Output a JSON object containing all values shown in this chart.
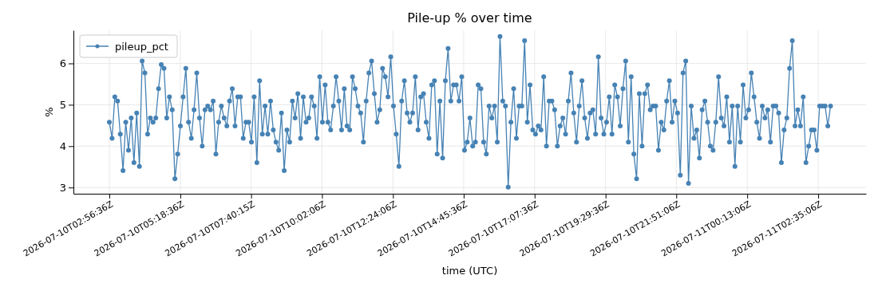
{
  "chart_data": {
    "type": "line",
    "title": "Pile-up % over time",
    "xlabel": "time (UTC)",
    "ylabel": "%",
    "xlim": [
      "2026-07-10T01:44:42",
      "2026-07-11T04:10:48"
    ],
    "ylim": [
      2.85,
      6.8
    ],
    "xticks": [
      {
        "value": "2026-07-10T02:56:36",
        "label": "2026-07-10T02:56:36Z"
      },
      {
        "value": "2026-07-10T05:18:36",
        "label": "2026-07-10T05:18:36Z"
      },
      {
        "value": "2026-07-10T07:40:15",
        "label": "2026-07-10T07:40:15Z"
      },
      {
        "value": "2026-07-10T10:02:06",
        "label": "2026-07-10T10:02:06Z"
      },
      {
        "value": "2026-07-10T12:24:06",
        "label": "2026-07-10T12:24:06Z"
      },
      {
        "value": "2026-07-10T14:45:36",
        "label": "2026-07-10T14:45:36Z"
      },
      {
        "value": "2026-07-10T17:07:36",
        "label": "2026-07-10T17:07:36Z"
      },
      {
        "value": "2026-07-10T19:29:36",
        "label": "2026-07-10T19:29:36Z"
      },
      {
        "value": "2026-07-10T21:51:06",
        "label": "2026-07-10T21:51:06Z"
      },
      {
        "value": "2026-07-11T00:13:06",
        "label": "2026-07-11T00:13:06Z"
      },
      {
        "value": "2026-07-11T02:35:06",
        "label": "2026-07-11T02:35:06Z"
      }
    ],
    "yticks": [
      3,
      4,
      5,
      6
    ],
    "grid": true,
    "legend": "top left",
    "marker": "circle",
    "line_style": "solid",
    "x": [
      "2026-07-10T02:56:36",
      "2026-07-10T03:02:04",
      "2026-07-10T03:07:32",
      "2026-07-10T03:13:00",
      "2026-07-10T03:18:28",
      "2026-07-10T03:23:56",
      "2026-07-10T03:29:24",
      "2026-07-10T03:34:52",
      "2026-07-10T03:40:20",
      "2026-07-10T03:45:48",
      "2026-07-10T03:51:16",
      "2026-07-10T03:56:44",
      "2026-07-10T04:02:12",
      "2026-07-10T04:07:40",
      "2026-07-10T04:13:08",
      "2026-07-10T04:18:36",
      "2026-07-10T04:24:04",
      "2026-07-10T04:29:32",
      "2026-07-10T04:35:00",
      "2026-07-10T04:40:28",
      "2026-07-10T04:45:56",
      "2026-07-10T04:51:24",
      "2026-07-10T04:56:52",
      "2026-07-10T05:02:20",
      "2026-07-10T05:07:48",
      "2026-07-10T05:13:16",
      "2026-07-10T05:18:44",
      "2026-07-10T05:24:12",
      "2026-07-10T05:29:40",
      "2026-07-10T05:35:08",
      "2026-07-10T05:40:36",
      "2026-07-10T05:46:04",
      "2026-07-10T05:51:32",
      "2026-07-10T05:57:00",
      "2026-07-10T06:02:28",
      "2026-07-10T06:07:56",
      "2026-07-10T06:13:24",
      "2026-07-10T06:18:52",
      "2026-07-10T06:24:20",
      "2026-07-10T06:29:48",
      "2026-07-10T06:35:16",
      "2026-07-10T06:40:44",
      "2026-07-10T06:46:12",
      "2026-07-10T06:51:40",
      "2026-07-10T06:57:08",
      "2026-07-10T07:02:36",
      "2026-07-10T07:08:04",
      "2026-07-10T07:13:32",
      "2026-07-10T07:19:00",
      "2026-07-10T07:24:28",
      "2026-07-10T07:29:56",
      "2026-07-10T07:35:24",
      "2026-07-10T07:40:52",
      "2026-07-10T07:46:20",
      "2026-07-10T07:51:48",
      "2026-07-10T07:57:16",
      "2026-07-10T08:02:44",
      "2026-07-10T08:08:12",
      "2026-07-10T08:13:40",
      "2026-07-10T08:19:08",
      "2026-07-10T08:24:36",
      "2026-07-10T08:30:04",
      "2026-07-10T08:35:32",
      "2026-07-10T08:41:00",
      "2026-07-10T08:46:28",
      "2026-07-10T08:51:56",
      "2026-07-10T08:57:24",
      "2026-07-10T09:02:52",
      "2026-07-10T09:08:20",
      "2026-07-10T09:13:48",
      "2026-07-10T09:19:16",
      "2026-07-10T09:24:44",
      "2026-07-10T09:30:12",
      "2026-07-10T09:35:40",
      "2026-07-10T09:41:08",
      "2026-07-10T09:46:36",
      "2026-07-10T09:52:04",
      "2026-07-10T09:57:32",
      "2026-07-10T10:03:00",
      "2026-07-10T10:08:28",
      "2026-07-10T10:13:56",
      "2026-07-10T10:19:24",
      "2026-07-10T10:24:52",
      "2026-07-10T10:30:20",
      "2026-07-10T10:35:48",
      "2026-07-10T10:41:16",
      "2026-07-10T10:46:44",
      "2026-07-10T10:52:12",
      "2026-07-10T10:57:40",
      "2026-07-10T11:03:08",
      "2026-07-10T11:08:36",
      "2026-07-10T11:14:04",
      "2026-07-10T11:19:32",
      "2026-07-10T11:25:00",
      "2026-07-10T11:30:28",
      "2026-07-10T11:35:56",
      "2026-07-10T11:41:24",
      "2026-07-10T11:46:52",
      "2026-07-10T11:52:20",
      "2026-07-10T11:57:48",
      "2026-07-10T12:03:16",
      "2026-07-10T12:08:44",
      "2026-07-10T12:14:12",
      "2026-07-10T12:19:40",
      "2026-07-10T12:25:08",
      "2026-07-10T12:30:36",
      "2026-07-10T12:36:04",
      "2026-07-10T12:41:32",
      "2026-07-10T12:47:00",
      "2026-07-10T12:52:28",
      "2026-07-10T12:57:56",
      "2026-07-10T13:03:24",
      "2026-07-10T13:08:52",
      "2026-07-10T13:14:20",
      "2026-07-10T13:19:48",
      "2026-07-10T13:25:16",
      "2026-07-10T13:30:44",
      "2026-07-10T13:36:12",
      "2026-07-10T13:41:40",
      "2026-07-10T13:47:08",
      "2026-07-10T13:52:36",
      "2026-07-10T13:58:04",
      "2026-07-10T14:03:32",
      "2026-07-10T14:09:00",
      "2026-07-10T14:14:28",
      "2026-07-10T14:19:56",
      "2026-07-10T14:25:24",
      "2026-07-10T14:30:52",
      "2026-07-10T14:36:20",
      "2026-07-10T14:41:48",
      "2026-07-10T14:47:16",
      "2026-07-10T14:52:44",
      "2026-07-10T14:58:12",
      "2026-07-10T15:03:40",
      "2026-07-10T15:09:08",
      "2026-07-10T15:14:36",
      "2026-07-10T15:20:04",
      "2026-07-10T15:25:32",
      "2026-07-10T15:31:00",
      "2026-07-10T15:36:28",
      "2026-07-10T15:41:56",
      "2026-07-10T15:47:24",
      "2026-07-10T15:52:52",
      "2026-07-10T15:58:20",
      "2026-07-10T16:03:48",
      "2026-07-10T16:09:16",
      "2026-07-10T16:14:44",
      "2026-07-10T16:20:12",
      "2026-07-10T16:25:40",
      "2026-07-10T16:31:08",
      "2026-07-10T16:36:36",
      "2026-07-10T16:42:04",
      "2026-07-10T16:47:32",
      "2026-07-10T16:53:00",
      "2026-07-10T16:58:28",
      "2026-07-10T17:03:56",
      "2026-07-10T17:09:24",
      "2026-07-10T17:14:52",
      "2026-07-10T17:20:20",
      "2026-07-10T17:25:48",
      "2026-07-10T17:31:16",
      "2026-07-10T17:36:44",
      "2026-07-10T17:42:12",
      "2026-07-10T17:47:40",
      "2026-07-10T17:53:08",
      "2026-07-10T17:58:36",
      "2026-07-10T18:04:04",
      "2026-07-10T18:09:32",
      "2026-07-10T18:15:00",
      "2026-07-10T18:20:28",
      "2026-07-10T18:25:56",
      "2026-07-10T18:31:24",
      "2026-07-10T18:36:52",
      "2026-07-10T18:42:20",
      "2026-07-10T18:47:48",
      "2026-07-10T18:53:16",
      "2026-07-10T18:58:44",
      "2026-07-10T19:04:12",
      "2026-07-10T19:09:40",
      "2026-07-10T19:15:08",
      "2026-07-10T19:20:36",
      "2026-07-10T19:26:04",
      "2026-07-10T19:31:32",
      "2026-07-10T19:37:00",
      "2026-07-10T19:42:28",
      "2026-07-10T19:47:56",
      "2026-07-10T19:53:24",
      "2026-07-10T19:58:52",
      "2026-07-10T20:04:20",
      "2026-07-10T20:09:48",
      "2026-07-10T20:15:16",
      "2026-07-10T20:20:44",
      "2026-07-10T20:26:12",
      "2026-07-10T20:31:40",
      "2026-07-10T20:37:08",
      "2026-07-10T20:42:36",
      "2026-07-10T20:48:04",
      "2026-07-10T20:53:32",
      "2026-07-10T20:59:00",
      "2026-07-10T21:04:28",
      "2026-07-10T21:09:56",
      "2026-07-10T21:15:24",
      "2026-07-10T21:20:52",
      "2026-07-10T21:26:20",
      "2026-07-10T21:31:48",
      "2026-07-10T21:37:16",
      "2026-07-10T21:42:44",
      "2026-07-10T21:48:12",
      "2026-07-10T21:53:40",
      "2026-07-10T21:59:08",
      "2026-07-10T22:04:36",
      "2026-07-10T22:10:04",
      "2026-07-10T22:15:32",
      "2026-07-10T22:21:00",
      "2026-07-10T22:26:28",
      "2026-07-10T22:31:56",
      "2026-07-10T22:37:24",
      "2026-07-10T22:42:52",
      "2026-07-10T22:48:20",
      "2026-07-10T22:53:48",
      "2026-07-10T22:59:16",
      "2026-07-10T23:04:44",
      "2026-07-10T23:10:12",
      "2026-07-10T23:15:40",
      "2026-07-10T23:21:08",
      "2026-07-10T23:26:36",
      "2026-07-10T23:32:04",
      "2026-07-10T23:37:32",
      "2026-07-10T23:43:00",
      "2026-07-10T23:48:28",
      "2026-07-10T23:53:56",
      "2026-07-10T23:59:24",
      "2026-07-11T00:04:52",
      "2026-07-11T00:10:20",
      "2026-07-11T00:15:48",
      "2026-07-11T00:21:16",
      "2026-07-11T00:26:44",
      "2026-07-11T00:32:12",
      "2026-07-11T00:37:40",
      "2026-07-11T00:43:08",
      "2026-07-11T00:48:36",
      "2026-07-11T00:54:04",
      "2026-07-11T00:59:32",
      "2026-07-11T01:05:00",
      "2026-07-11T01:10:28",
      "2026-07-11T01:15:56",
      "2026-07-11T01:21:24",
      "2026-07-11T01:26:52",
      "2026-07-11T01:32:20",
      "2026-07-11T01:37:48",
      "2026-07-11T01:43:16",
      "2026-07-11T01:48:44",
      "2026-07-11T01:54:12",
      "2026-07-11T01:59:40",
      "2026-07-11T02:05:08",
      "2026-07-11T02:10:36",
      "2026-07-11T02:16:04",
      "2026-07-11T02:21:32",
      "2026-07-11T02:27:00",
      "2026-07-11T02:32:28",
      "2026-07-11T02:37:56",
      "2026-07-11T02:43:24",
      "2026-07-11T02:48:52",
      "2026-07-11T02:54:20",
      "2026-07-11T02:59:48"
    ],
    "series": [
      {
        "name": "pileup_pct",
        "color": "#4682b4",
        "values": [
          4.58,
          4.19,
          5.19,
          5.09,
          4.29,
          3.41,
          4.58,
          3.9,
          4.68,
          3.6,
          4.8,
          3.51,
          6.06,
          5.77,
          4.29,
          4.68,
          4.58,
          4.68,
          5.39,
          5.97,
          5.88,
          4.68,
          5.19,
          4.88,
          3.21,
          3.81,
          4.49,
          5.19,
          5.88,
          4.58,
          4.19,
          4.88,
          5.77,
          4.68,
          4.0,
          4.88,
          4.97,
          4.88,
          5.09,
          3.81,
          4.58,
          4.97,
          4.68,
          4.49,
          5.09,
          5.39,
          4.49,
          5.19,
          5.19,
          4.19,
          4.58,
          4.58,
          4.1,
          5.19,
          3.6,
          5.58,
          4.29,
          4.97,
          4.29,
          5.09,
          4.39,
          4.1,
          3.9,
          4.8,
          3.41,
          4.39,
          4.1,
          5.09,
          4.68,
          5.27,
          4.19,
          5.19,
          4.58,
          4.68,
          5.19,
          4.97,
          4.19,
          5.68,
          4.58,
          5.48,
          4.58,
          4.39,
          4.97,
          5.68,
          5.09,
          4.39,
          5.39,
          4.49,
          4.39,
          5.68,
          5.39,
          4.97,
          4.8,
          4.1,
          5.09,
          5.77,
          6.06,
          5.27,
          4.58,
          4.88,
          5.88,
          5.68,
          5.19,
          6.16,
          4.97,
          4.29,
          3.51,
          5.09,
          5.58,
          4.8,
          4.58,
          4.8,
          5.68,
          4.39,
          5.19,
          5.27,
          4.58,
          4.19,
          5.48,
          5.58,
          3.81,
          5.09,
          3.71,
          5.58,
          6.36,
          5.09,
          5.48,
          5.48,
          5.09,
          5.68,
          3.9,
          4.1,
          4.68,
          4.0,
          4.1,
          5.48,
          5.39,
          4.1,
          3.81,
          4.97,
          4.68,
          4.97,
          4.1,
          6.65,
          5.09,
          4.97,
          3.01,
          4.58,
          5.39,
          4.19,
          4.97,
          4.97,
          6.55,
          4.58,
          5.48,
          4.39,
          4.29,
          4.49,
          4.39,
          5.68,
          4.0,
          5.09,
          5.09,
          4.88,
          4.0,
          4.49,
          4.68,
          4.29,
          5.09,
          5.77,
          4.8,
          4.1,
          4.97,
          5.58,
          4.68,
          4.19,
          4.8,
          4.88,
          4.29,
          6.16,
          4.68,
          4.29,
          4.58,
          5.19,
          4.29,
          5.48,
          5.19,
          4.49,
          5.39,
          6.06,
          4.1,
          5.68,
          3.81,
          3.21,
          5.27,
          4.0,
          5.27,
          5.48,
          4.88,
          4.97,
          4.97,
          3.9,
          4.58,
          4.39,
          5.09,
          5.58,
          4.58,
          5.09,
          4.8,
          3.3,
          5.77,
          6.06,
          3.1,
          4.97,
          4.19,
          4.39,
          3.71,
          4.88,
          5.09,
          4.58,
          4.0,
          3.9,
          4.58,
          5.68,
          4.68,
          4.49,
          5.19,
          4.1,
          4.97,
          3.51,
          4.97,
          4.1,
          5.48,
          4.68,
          4.88,
          5.77,
          5.19,
          4.58,
          4.19,
          4.97,
          4.68,
          4.88,
          4.1,
          4.97,
          4.97,
          4.8,
          3.6,
          4.39,
          4.68,
          5.88,
          6.55,
          4.49,
          4.88,
          4.49,
          5.19,
          3.6,
          4.0,
          4.39,
          4.39,
          3.9,
          4.97,
          4.97,
          4.97,
          4.49,
          4.97
        ]
      }
    ]
  }
}
